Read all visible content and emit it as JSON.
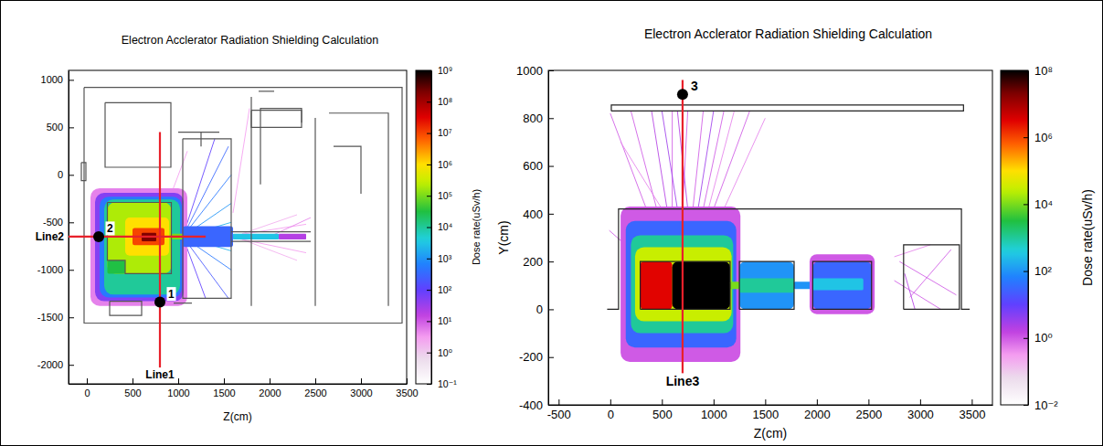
{
  "chart_data": [
    {
      "type": "heatmap",
      "title": "Electron Acclerator Radiation Shielding Calculation",
      "x_label": "Z(cm)",
      "xlim": [
        -200,
        3500
      ],
      "xticks": [
        0,
        500,
        1000,
        1500,
        2000,
        2500,
        3000,
        3500
      ],
      "ylim": [
        -2200,
        1100
      ],
      "yticks": [
        -2000,
        -1500,
        -1000,
        -500,
        0,
        500,
        1000
      ],
      "colorbar": {
        "label": "Dose rate(uSv/h)",
        "log": true,
        "range": [
          0.1,
          1000000000
        ],
        "ticks": [
          {
            "value": 0.1,
            "label": "10⁻¹"
          },
          {
            "value": 1,
            "label": "10⁰"
          },
          {
            "value": 10,
            "label": "10¹"
          },
          {
            "value": 100,
            "label": "10²"
          },
          {
            "value": 1000,
            "label": "10³"
          },
          {
            "value": 10000,
            "label": "10⁴"
          },
          {
            "value": 100000,
            "label": "10⁵"
          },
          {
            "value": 1000000,
            "label": "10⁶"
          },
          {
            "value": 10000000,
            "label": "10⁷"
          },
          {
            "value": 100000000,
            "label": "10⁸"
          },
          {
            "value": 1000000000,
            "label": "10⁹"
          }
        ]
      },
      "cells": [
        {
          "z": [
            40,
            1100
          ],
          "y": [
            -1380,
            -140
          ],
          "value": 5
        },
        {
          "z": [
            90,
            1060
          ],
          "y": [
            -1330,
            -190
          ],
          "value": 50
        },
        {
          "z": [
            140,
            1040
          ],
          "y": [
            -1290,
            -230
          ],
          "value": 500
        },
        {
          "z": [
            190,
            1020
          ],
          "y": [
            -1260,
            -260
          ],
          "value": 10000
        },
        {
          "z": [
            225,
            925
          ],
          "y": [
            -1040,
            -290
          ],
          "value": 200000
        },
        {
          "z": [
            225,
            420
          ],
          "y": [
            -1040,
            -900
          ],
          "value": 30000
        },
        {
          "z": [
            420,
            900
          ],
          "y": [
            -850,
            -450
          ],
          "value": 1000000
        },
        {
          "z": [
            500,
            850
          ],
          "y": [
            -740,
            -560
          ],
          "value": 10000000
        },
        {
          "z": [
            600,
            760
          ],
          "y": [
            -700,
            -610
          ],
          "value": 200000000
        },
        {
          "z": [
            925,
            1050
          ],
          "y": [
            -680,
            -620
          ],
          "value": 100000
        },
        {
          "z": [
            1050,
            1600
          ],
          "y": [
            -760,
            -540
          ],
          "value": 300
        },
        {
          "z": [
            1600,
            2100
          ],
          "y": [
            -680,
            -620
          ],
          "value": 3000
        },
        {
          "z": [
            2100,
            2400
          ],
          "y": [
            -680,
            -620
          ],
          "value": 20
        }
      ],
      "tracks": [
        {
          "z": [
            1050,
            1550
          ],
          "y": [
            -650,
            300
          ],
          "value": 300
        },
        {
          "z": [
            1050,
            1580
          ],
          "y": [
            -650,
            0
          ],
          "value": 500
        },
        {
          "z": [
            1050,
            1580
          ],
          "y": [
            -650,
            -300
          ],
          "value": 1000
        },
        {
          "z": [
            1050,
            1580
          ],
          "y": [
            -650,
            -1000
          ],
          "value": 500
        },
        {
          "z": [
            1050,
            1550
          ],
          "y": [
            -650,
            -1300
          ],
          "value": 200
        },
        {
          "z": [
            1050,
            1400
          ],
          "y": [
            -650,
            380
          ],
          "value": 100
        },
        {
          "z": [
            1050,
            1300
          ],
          "y": [
            -650,
            -1300
          ],
          "value": 100
        },
        {
          "z": [
            1050,
            1580
          ],
          "y": [
            -650,
            -500
          ],
          "value": 2000
        },
        {
          "z": [
            1050,
            1580
          ],
          "y": [
            -650,
            -800
          ],
          "value": 2000
        },
        {
          "z": [
            1600,
            2400
          ],
          "y": [
            -640,
            -520
          ],
          "value": 3
        },
        {
          "z": [
            1600,
            2400
          ],
          "y": [
            -660,
            -820
          ],
          "value": 3
        },
        {
          "z": [
            1700,
            2300
          ],
          "y": [
            -620,
            -420
          ],
          "value": 2
        },
        {
          "z": [
            1700,
            2300
          ],
          "y": [
            -680,
            -900
          ],
          "value": 2
        },
        {
          "z": [
            2000,
            2450
          ],
          "y": [
            -650,
            -450
          ],
          "value": 5
        },
        {
          "z": [
            900,
            1100
          ],
          "y": [
            -260,
            250
          ],
          "value": 3
        },
        {
          "z": [
            1600,
            1780
          ],
          "y": [
            -400,
            700
          ],
          "value": 3
        }
      ],
      "geometry": [
        {
          "z": [
            -30,
            3450,
            3450,
            -30,
            -30
          ],
          "y": [
            920,
            920,
            -1560,
            -1560,
            920
          ]
        },
        {
          "z": [
            200,
            920,
            920,
            200,
            200
          ],
          "y": [
            760,
            760,
            80,
            80,
            760
          ]
        },
        {
          "z": [
            -60,
            -10,
            -10,
            -60,
            -60
          ],
          "y": [
            130,
            130,
            -60,
            -60,
            130
          ]
        },
        {
          "z": [
            225,
            925,
            925,
            420,
            420,
            225,
            225
          ],
          "y": [
            -290,
            -290,
            -1040,
            -1040,
            -900,
            -900,
            -290
          ]
        },
        {
          "z": [
            250,
            600,
            600,
            250,
            250
          ],
          "y": [
            -1330,
            -1330,
            -1480,
            -1480,
            -1330
          ]
        },
        {
          "z": [
            1050,
            1580,
            1580,
            1050,
            1050
          ],
          "y": [
            380,
            380,
            -1300,
            -1300,
            380
          ]
        },
        {
          "z": [
            1000,
            1450
          ],
          "y": [
            450,
            450
          ]
        },
        {
          "z": [
            1250,
            1250
          ],
          "y": [
            450,
            300
          ]
        },
        {
          "z": [
            1800,
            1800
          ],
          "y": [
            820,
            -1380
          ]
        },
        {
          "z": [
            1900,
            1900,
            2350,
            2350
          ],
          "y": [
            -100,
            700,
            700,
            550
          ]
        },
        {
          "z": [
            2500,
            2500
          ],
          "y": [
            600,
            -1380
          ]
        },
        {
          "z": [
            2650,
            3300,
            3300
          ],
          "y": [
            650,
            650,
            -1380
          ]
        },
        {
          "z": [
            2700,
            3000,
            3000
          ],
          "y": [
            300,
            300,
            -200
          ]
        },
        {
          "z": [
            1800,
            2350,
            2350,
            1800,
            1800
          ],
          "y": [
            680,
            680,
            500,
            500,
            680
          ]
        },
        {
          "z": [
            1580,
            2450
          ],
          "y": [
            -600,
            -600
          ]
        },
        {
          "z": [
            1580,
            2450
          ],
          "y": [
            -700,
            -700
          ]
        },
        {
          "z": [
            950,
            1150
          ],
          "y": [
            -1350,
            -1350
          ]
        },
        {
          "z": [
            1880,
            2050
          ],
          "y": [
            880,
            880
          ]
        }
      ],
      "lines": [
        {
          "label": "Line1",
          "z": [
            800,
            800
          ],
          "y": [
            -2100,
            450
          ],
          "color": "#e8202a"
        },
        {
          "label": "Line2",
          "z": [
            -200,
            1300
          ],
          "y": [
            -650,
            -650
          ],
          "color": "#e8202a"
        }
      ],
      "points": [
        {
          "label": "1",
          "z": 800,
          "y": -1340
        },
        {
          "label": "2",
          "z": 130,
          "y": -650
        }
      ]
    },
    {
      "type": "heatmap",
      "title": "Electron Acclerator Radiation Shielding Calculation",
      "x_label": "Z(cm)",
      "y_label": "Y(cm)",
      "xlim": [
        -600,
        3700
      ],
      "xticks": [
        -500,
        0,
        500,
        1000,
        1500,
        2000,
        2500,
        3000,
        3500
      ],
      "ylim": [
        -400,
        1000
      ],
      "yticks": [
        -400,
        -200,
        0,
        200,
        400,
        600,
        800,
        1000
      ],
      "colorbar": {
        "label": "Dose rate(uSv/h)",
        "log": true,
        "range": [
          0.01,
          100000000
        ],
        "ticks": [
          {
            "value": 0.01,
            "label": "10⁻²"
          },
          {
            "value": 1,
            "label": "10⁰"
          },
          {
            "value": 100,
            "label": "10²"
          },
          {
            "value": 10000,
            "label": "10⁴"
          },
          {
            "value": 1000000,
            "label": "10⁶"
          },
          {
            "value": 100000000,
            "label": "10⁸"
          }
        ]
      },
      "cells": [
        {
          "z": [
            100,
            1260
          ],
          "y": [
            -220,
            430
          ],
          "value": 1
        },
        {
          "z": [
            150,
            1220
          ],
          "y": [
            -160,
            370
          ],
          "value": 30
        },
        {
          "z": [
            200,
            1190
          ],
          "y": [
            -100,
            310
          ],
          "value": 1000
        },
        {
          "z": [
            240,
            1175
          ],
          "y": [
            -50,
            260
          ],
          "value": 30000
        },
        {
          "z": [
            290,
            600
          ],
          "y": [
            0,
            200
          ],
          "value": 3000000
        },
        {
          "z": [
            600,
            1160
          ],
          "y": [
            0,
            200
          ],
          "value": 100000000
        },
        {
          "z": [
            1160,
            1250
          ],
          "y": [
            85,
            115
          ],
          "value": 10000
        },
        {
          "z": [
            1250,
            1780
          ],
          "y": [
            0,
            200
          ],
          "value": 100
        },
        {
          "z": [
            1250,
            1780
          ],
          "y": [
            70,
            130
          ],
          "value": 1000
        },
        {
          "z": [
            1780,
            1960
          ],
          "y": [
            85,
            115
          ],
          "value": 100
        },
        {
          "z": [
            1930,
            2560
          ],
          "y": [
            -20,
            230
          ],
          "value": 1
        },
        {
          "z": [
            1960,
            2530
          ],
          "y": [
            0,
            200
          ],
          "value": 30
        },
        {
          "z": [
            1960,
            2450
          ],
          "y": [
            80,
            130
          ],
          "value": 300
        }
      ],
      "tracks": [
        {
          "z": [
            350,
            0
          ],
          "y": [
            420,
            820
          ],
          "value": 1
        },
        {
          "z": [
            450,
            200
          ],
          "y": [
            420,
            830
          ],
          "value": 1
        },
        {
          "z": [
            500,
            100
          ],
          "y": [
            420,
            700
          ],
          "value": 0.5
        },
        {
          "z": [
            550,
            400
          ],
          "y": [
            420,
            830
          ],
          "value": 2
        },
        {
          "z": [
            600,
            600
          ],
          "y": [
            420,
            830
          ],
          "value": 1
        },
        {
          "z": [
            650,
            500
          ],
          "y": [
            420,
            830
          ],
          "value": 3
        },
        {
          "z": [
            700,
            750
          ],
          "y": [
            420,
            830
          ],
          "value": 1
        },
        {
          "z": [
            750,
            650
          ],
          "y": [
            420,
            830
          ],
          "value": 2
        },
        {
          "z": [
            800,
            900
          ],
          "y": [
            420,
            830
          ],
          "value": 1
        },
        {
          "z": [
            850,
            1000
          ],
          "y": [
            420,
            830
          ],
          "value": 3
        },
        {
          "z": [
            900,
            1100
          ],
          "y": [
            420,
            830
          ],
          "value": 1
        },
        {
          "z": [
            950,
            1200
          ],
          "y": [
            420,
            830
          ],
          "value": 0.5
        },
        {
          "z": [
            1000,
            1350
          ],
          "y": [
            420,
            830
          ],
          "value": 1
        },
        {
          "z": [
            1100,
            1500
          ],
          "y": [
            420,
            800
          ],
          "value": 0.5
        },
        {
          "z": [
            200,
            -10
          ],
          "y": [
            250,
            330
          ],
          "value": 1
        },
        {
          "z": [
            2750,
            3200
          ],
          "y": [
            120,
            0
          ],
          "value": 1
        },
        {
          "z": [
            2800,
            3350
          ],
          "y": [
            200,
            60
          ],
          "value": 1
        },
        {
          "z": [
            2850,
            2950
          ],
          "y": [
            150,
            0
          ],
          "value": 2
        },
        {
          "z": [
            2750,
            3100
          ],
          "y": [
            220,
            270
          ],
          "value": 0.5
        },
        {
          "z": [
            2900,
            3300
          ],
          "y": [
            50,
            250
          ],
          "value": 1
        }
      ],
      "geometry": [
        {
          "z": [
            10,
            3420,
            3420,
            10,
            10
          ],
          "y": [
            830,
            830,
            855,
            855,
            830
          ]
        },
        {
          "z": [
            -30,
            80,
            80,
            3400,
            3400,
            3480
          ],
          "y": [
            0,
            0,
            420,
            420,
            0,
            0
          ]
        },
        {
          "z": [
            290,
            1160,
            1160,
            290,
            290
          ],
          "y": [
            0,
            0,
            200,
            200,
            0
          ]
        },
        {
          "z": [
            1250,
            1780,
            1780,
            1250,
            1250
          ],
          "y": [
            0,
            0,
            200,
            200,
            0
          ]
        },
        {
          "z": [
            1960,
            2530,
            2530,
            1960,
            1960
          ],
          "y": [
            0,
            0,
            200,
            200,
            0
          ]
        },
        {
          "z": [
            2840,
            3380,
            3380,
            2840,
            2840
          ],
          "y": [
            0,
            0,
            270,
            270,
            0
          ]
        }
      ],
      "lines": [
        {
          "label": "Line3",
          "z": [
            700,
            700
          ],
          "y": [
            -300,
            960
          ],
          "color": "#e8202a"
        }
      ],
      "points": [
        {
          "label": "3",
          "z": 700,
          "y": 900
        }
      ]
    }
  ]
}
